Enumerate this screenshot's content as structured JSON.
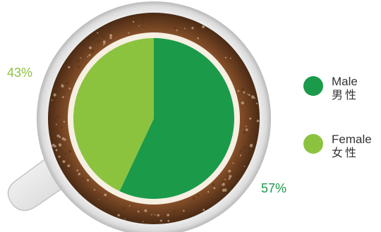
{
  "chart_data": {
    "type": "pie",
    "title": "",
    "slices": [
      {
        "label": "Male",
        "label_zh": "男性",
        "value": 57,
        "display": "57%",
        "color": "#1b9b4a"
      },
      {
        "label": "Female",
        "label_zh": "女性",
        "value": 43,
        "display": "43%",
        "color": "#8bc33f"
      }
    ],
    "legend_position": "right"
  },
  "icons": [
    "coffee-cup-icon"
  ]
}
